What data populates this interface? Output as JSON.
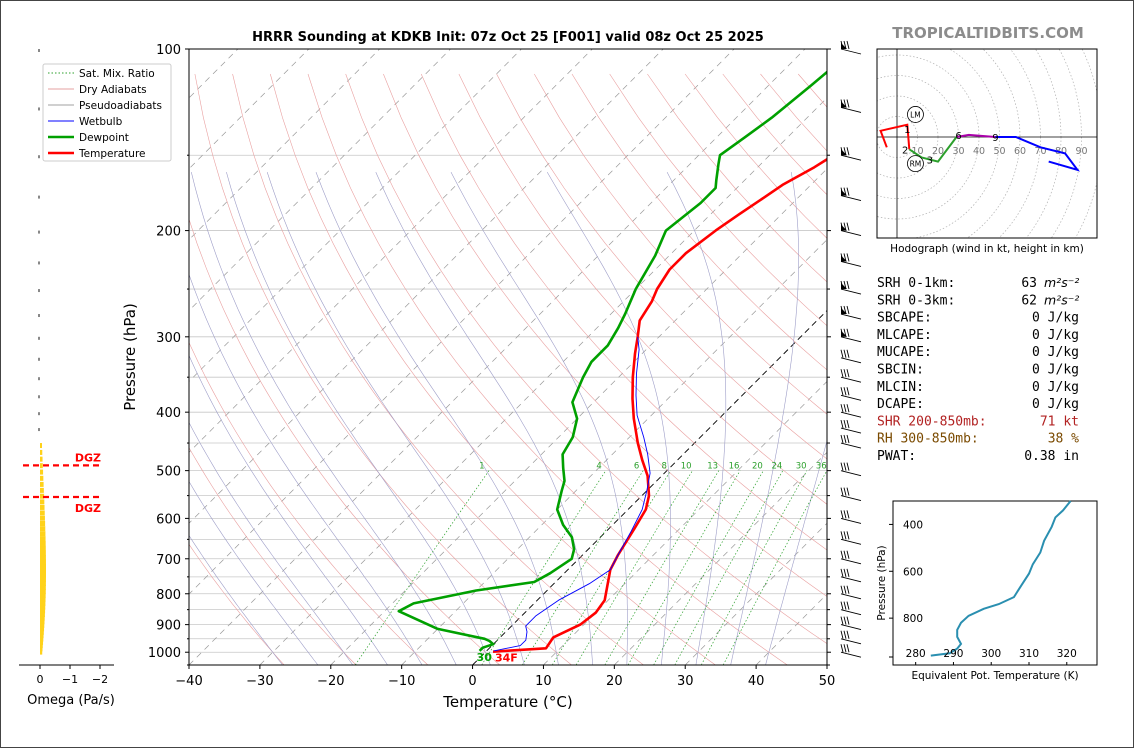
{
  "chart_data": {
    "type": "line",
    "title": "HRRR Sounding at KDKB Init: 07z Oct 25 [F001] valid 08z Oct 25 2025",
    "site_label": "TROPICALTIDBITS.COM",
    "xlabel": "Temperature (°C)",
    "ylabel": "Pressure (hPa)",
    "xlim": [
      -40,
      50
    ],
    "ylim": [
      1050,
      100
    ],
    "y_scale": "log",
    "x_ticks": [
      "−40",
      "−30",
      "−20",
      "−10",
      "0",
      "10",
      "20",
      "30",
      "40",
      "50"
    ],
    "y_ticks": [
      "100",
      "200",
      "300",
      "400",
      "500",
      "600",
      "700",
      "800",
      "900",
      "1000"
    ],
    "legend": {
      "placement": "top-left",
      "items": [
        {
          "label": "Sat. Mix. Ratio",
          "color": "#2ca02c",
          "style": "dotted"
        },
        {
          "label": "Dry Adiabats",
          "color": "#e6a0a0",
          "style": "solid"
        },
        {
          "label": "Pseudoadiabats",
          "color": "#a0a0a0",
          "style": "solid"
        },
        {
          "label": "Wetbulb",
          "color": "#0000ff",
          "style": "solid"
        },
        {
          "label": "Dewpoint",
          "color": "#00a000",
          "style": "thick"
        },
        {
          "label": "Temperature",
          "color": "#ff0000",
          "style": "thick"
        }
      ]
    },
    "series": [
      {
        "name": "Temperature",
        "color": "#ff0000",
        "points": [
          [
            1,
            998
          ],
          [
            8,
            985
          ],
          [
            7.5,
            945
          ],
          [
            9.5,
            900
          ],
          [
            10,
            860
          ],
          [
            9.5,
            820
          ],
          [
            8,
            780
          ],
          [
            6,
            730
          ],
          [
            5,
            690
          ],
          [
            3.5,
            620
          ],
          [
            2.5,
            580
          ],
          [
            1,
            550
          ],
          [
            -2,
            510
          ],
          [
            -5,
            480
          ],
          [
            -8,
            450
          ],
          [
            -12,
            410
          ],
          [
            -15,
            380
          ],
          [
            -18,
            350
          ],
          [
            -21,
            320
          ],
          [
            -23,
            300
          ],
          [
            -25,
            282
          ],
          [
            -26,
            262
          ],
          [
            -27,
            250
          ],
          [
            -28,
            232
          ],
          [
            -28,
            218
          ],
          [
            -27,
            200
          ],
          [
            -26,
            188
          ],
          [
            -25,
            178
          ],
          [
            -24,
            168
          ],
          [
            -22,
            157
          ],
          [
            -21,
            150
          ],
          [
            -20,
            142
          ],
          [
            -19,
            134
          ],
          [
            -17,
            121
          ],
          [
            -15,
            110
          ],
          [
            -14,
            100
          ]
        ]
      },
      {
        "name": "Dewpoint",
        "color": "#00a000",
        "points": [
          [
            -1,
            995
          ],
          [
            -1,
            983
          ],
          [
            0,
            970
          ],
          [
            -1,
            958
          ],
          [
            -2,
            950
          ],
          [
            -10,
            915
          ],
          [
            -18,
            855
          ],
          [
            -17,
            830
          ],
          [
            -10,
            790
          ],
          [
            -3,
            765
          ],
          [
            -2,
            740
          ],
          [
            -1,
            700
          ],
          [
            -2,
            675
          ],
          [
            -4,
            645
          ],
          [
            -7,
            615
          ],
          [
            -10,
            580
          ],
          [
            -12,
            540
          ],
          [
            -13,
            520
          ],
          [
            -15,
            495
          ],
          [
            -17,
            470
          ],
          [
            -18,
            440
          ],
          [
            -20,
            410
          ],
          [
            -23,
            385
          ],
          [
            -25,
            350
          ],
          [
            -26,
            330
          ],
          [
            -26,
            310
          ],
          [
            -27,
            290
          ],
          [
            -28,
            275
          ],
          [
            -30,
            250
          ],
          [
            -32,
            220
          ],
          [
            -34,
            200
          ],
          [
            -33,
            180
          ],
          [
            -33,
            170
          ],
          [
            -34,
            165
          ],
          [
            -36,
            155
          ],
          [
            -37,
            150
          ],
          [
            -36,
            140
          ],
          [
            -35,
            130
          ],
          [
            -34,
            115
          ],
          [
            -33,
            100
          ]
        ]
      },
      {
        "name": "Wetbulb",
        "color": "#0000ff",
        "points": [
          [
            1,
            995
          ],
          [
            4,
            975
          ],
          [
            4,
            955
          ],
          [
            3,
            925
          ],
          [
            2,
            905
          ],
          [
            2,
            870
          ],
          [
            3,
            820
          ],
          [
            5,
            770
          ],
          [
            6,
            730
          ],
          [
            5,
            690
          ],
          [
            3.5,
            630
          ],
          [
            2,
            580
          ],
          [
            0,
            540
          ],
          [
            -2,
            505
          ],
          [
            -5,
            470
          ],
          [
            -8,
            440
          ],
          [
            -12,
            405
          ],
          [
            -15,
            375
          ],
          [
            -18,
            345
          ],
          [
            -21,
            315
          ],
          [
            -23,
            300
          ]
        ]
      }
    ],
    "surface_labels": {
      "temperature": "34F",
      "dewpoint": "30"
    },
    "mixing_ratio_labels": [
      "1",
      "4",
      "6",
      "8",
      "10",
      "13",
      "16",
      "20",
      "24",
      "30",
      "36"
    ],
    "dgz": {
      "label": "DGZ",
      "upper_hpa": 490,
      "lower_hpa": 553
    },
    "omega": {
      "xlabel": "Omega (Pa/s)",
      "ticks": [
        "0",
        "−1",
        "−2"
      ]
    },
    "wind_barbs_side": "right",
    "hodograph": {
      "caption": "Hodograph (wind in kt, height in km)",
      "ring_labels": [
        "10",
        "20",
        "30",
        "40",
        "50",
        "60",
        "70",
        "80",
        "90"
      ],
      "height_labels": [
        "1",
        "2",
        "3",
        "6",
        "9"
      ],
      "markers": [
        "LM",
        "RM"
      ]
    },
    "theta_e": {
      "xlabel": "Equivalent Pot. Temperature (K)",
      "ylabel": "Pressure (hPa)",
      "x_ticks": [
        "280",
        "290",
        "300",
        "310",
        "320"
      ],
      "y_ticks": [
        "400",
        "600",
        "800"
      ],
      "points": [
        [
          321,
          300
        ],
        [
          319,
          340
        ],
        [
          317,
          370
        ],
        [
          316,
          410
        ],
        [
          314,
          470
        ],
        [
          313,
          520
        ],
        [
          311,
          570
        ],
        [
          310,
          610
        ],
        [
          308,
          660
        ],
        [
          306,
          710
        ],
        [
          302,
          740
        ],
        [
          298,
          760
        ],
        [
          294,
          790
        ],
        [
          292,
          820
        ],
        [
          291,
          850
        ],
        [
          291,
          880
        ],
        [
          292,
          910
        ],
        [
          291,
          930
        ],
        [
          289,
          950
        ],
        [
          284,
          960
        ]
      ]
    },
    "stats": [
      {
        "label": "SRH 0-1km:",
        "value": "63",
        "unit": "m²s⁻²",
        "color": "#000000"
      },
      {
        "label": "SRH 0-3km:",
        "value": "62",
        "unit": "m²s⁻²",
        "color": "#000000"
      },
      {
        "label": "SBCAPE:",
        "value": "0 J/kg",
        "unit": "",
        "color": "#000000"
      },
      {
        "label": "MLCAPE:",
        "value": "0 J/kg",
        "unit": "",
        "color": "#000000"
      },
      {
        "label": "MUCAPE:",
        "value": "0 J/kg",
        "unit": "",
        "color": "#000000"
      },
      {
        "label": "SBCIN:",
        "value": "0 J/kg",
        "unit": "",
        "color": "#000000"
      },
      {
        "label": "MLCIN:",
        "value": "0 J/kg",
        "unit": "",
        "color": "#000000"
      },
      {
        "label": "DCAPE:",
        "value": "0 J/kg",
        "unit": "",
        "color": "#000000"
      },
      {
        "label": "SHR 200-850mb:",
        "value": "71 kt",
        "unit": "",
        "color": "#b22222"
      },
      {
        "label": "RH 300-850mb:",
        "value": "38 %",
        "unit": "",
        "color": "#7a4a00"
      },
      {
        "label": "PWAT:",
        "value": "0.38 in",
        "unit": "",
        "color": "#000000"
      }
    ]
  }
}
